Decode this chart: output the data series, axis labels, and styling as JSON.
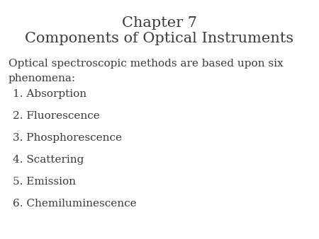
{
  "title_line1": "Chapter 7",
  "title_line2": "Components of Optical Instruments",
  "intro_text": "Optical spectroscopic methods are based upon six\nphenomena:",
  "list_items": [
    "1. Absorption",
    "2. Fluorescence",
    "3. Phosphorescence",
    "4. Scattering",
    "5. Emission",
    "6. Chemiluminescence"
  ],
  "background_color": "#ffffff",
  "text_color": "#3a3a3a",
  "title_fontsize": 15,
  "body_fontsize": 11,
  "font_family": "serif"
}
